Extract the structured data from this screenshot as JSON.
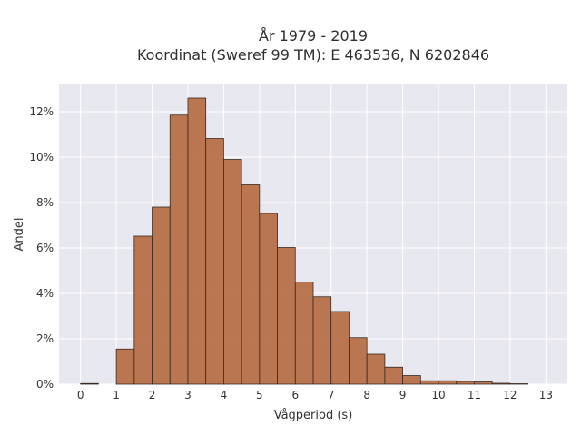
{
  "chart_data": {
    "type": "bar",
    "title_line1": "År 1979 - 2019",
    "title_line2": "Koordinat (Sweref 99 TM): E 463536, N 6202846",
    "xlabel": "Vågperiod (s)",
    "ylabel": "Andel",
    "bin_width": 0.5,
    "bin_starts": [
      0,
      0.5,
      1,
      1.5,
      2,
      2.5,
      3,
      3.5,
      4,
      4.5,
      5,
      5.5,
      6,
      6.5,
      7,
      7.5,
      8,
      8.5,
      9,
      9.5,
      10,
      10.5,
      11,
      11.5,
      12,
      12.5
    ],
    "values": [
      0.03,
      0.0,
      1.55,
      6.52,
      7.8,
      11.85,
      12.6,
      10.82,
      9.9,
      8.78,
      7.52,
      6.02,
      4.5,
      3.85,
      3.2,
      2.05,
      1.32,
      0.75,
      0.38,
      0.15,
      0.15,
      0.12,
      0.1,
      0.04,
      0.02,
      0.0
    ],
    "xlim": [
      -0.6,
      13.6
    ],
    "ylim": [
      0,
      13.2
    ],
    "xticks": [
      0,
      1,
      2,
      3,
      4,
      5,
      6,
      7,
      8,
      9,
      10,
      11,
      12,
      13
    ],
    "yticks": [
      0,
      2,
      4,
      6,
      8,
      10,
      12
    ],
    "ytick_labels": [
      "0%",
      "2%",
      "4%",
      "6%",
      "8%",
      "10%",
      "12%"
    ],
    "bar_color": "#b5683f",
    "plot_background": "#e8e8f0",
    "grid": true
  }
}
